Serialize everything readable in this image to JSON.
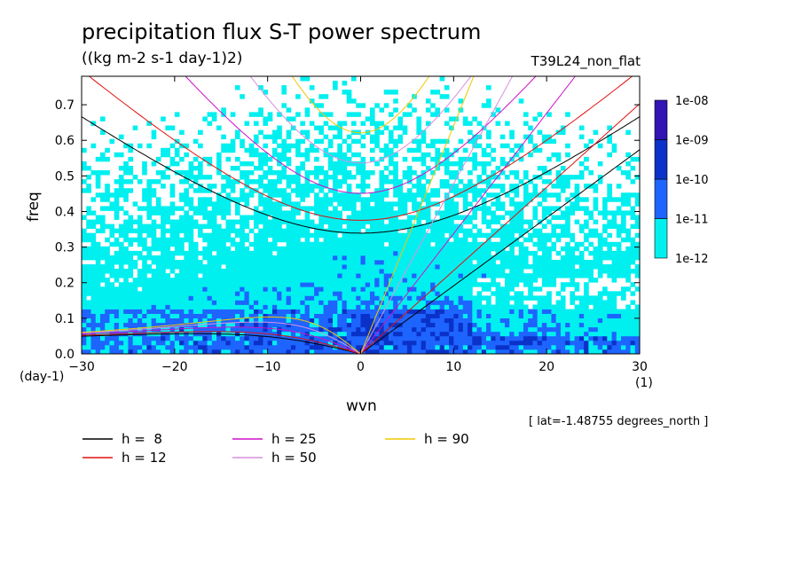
{
  "chart_data": {
    "type": "heatmap",
    "title": "precipitation flux S-T power spectrum",
    "units": "((kg m-2 s-1 day-1)2)",
    "run_label": "T39L24_non_flat",
    "xlabel": "wvn",
    "ylabel": "freq",
    "x_unit": "(1)",
    "y_unit": "(day-1)",
    "xlim": [
      -30,
      30
    ],
    "ylim": [
      0,
      0.78
    ],
    "x_ticks": [
      -30,
      -20,
      -10,
      0,
      10,
      20,
      30
    ],
    "x_tick_labels": [
      "-30",
      "-20",
      "-10",
      "0",
      "10",
      "20",
      "30"
    ],
    "y_ticks": [
      0,
      0.1,
      0.2,
      0.3,
      0.4,
      0.5,
      0.6,
      0.7
    ],
    "y_tick_labels": [
      "0.0",
      "0.1",
      "0.2",
      "0.3",
      "0.4",
      "0.5",
      "0.6",
      "0.7"
    ],
    "colorbar": {
      "levels": [
        "1e-12",
        "1e-11",
        "1e-10",
        "1e-09",
        "1e-08"
      ],
      "colors": [
        "#00f0f0",
        "#1e64ff",
        "#0a32c8",
        "#3214b4"
      ]
    },
    "dispersion_curves": [
      {
        "name": "h =  8",
        "h": 8,
        "color": "#000000"
      },
      {
        "name": "h = 12",
        "h": 12,
        "color": "#e01010"
      },
      {
        "name": "h = 25",
        "h": 25,
        "color": "#d010c8"
      },
      {
        "name": "h = 50",
        "h": 50,
        "color": "#d890e0"
      },
      {
        "name": "h = 90",
        "h": 90,
        "color": "#f0c800"
      }
    ],
    "annotation": "[ lat=-1.48755 degrees_north ]"
  }
}
